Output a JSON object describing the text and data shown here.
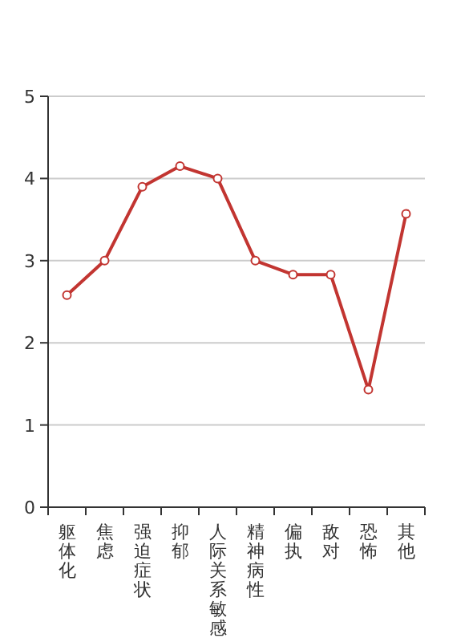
{
  "chart_data": {
    "type": "line",
    "categories": [
      "躯体化",
      "焦虑",
      "强迫症状",
      "抑郁",
      "人际关系敏感",
      "精神病性",
      "偏执",
      "敌对",
      "恐怖",
      "其他"
    ],
    "series": [
      {
        "color": "#c23531",
        "values": [
          2.58,
          3.0,
          3.9,
          4.15,
          4.0,
          3.0,
          2.83,
          2.83,
          1.43,
          3.57
        ]
      }
    ],
    "ylim": [
      0,
      5
    ],
    "yticks": [
      0,
      1,
      2,
      3,
      4,
      5
    ],
    "grid": "y",
    "marker": "circle",
    "line_style": "solid"
  }
}
